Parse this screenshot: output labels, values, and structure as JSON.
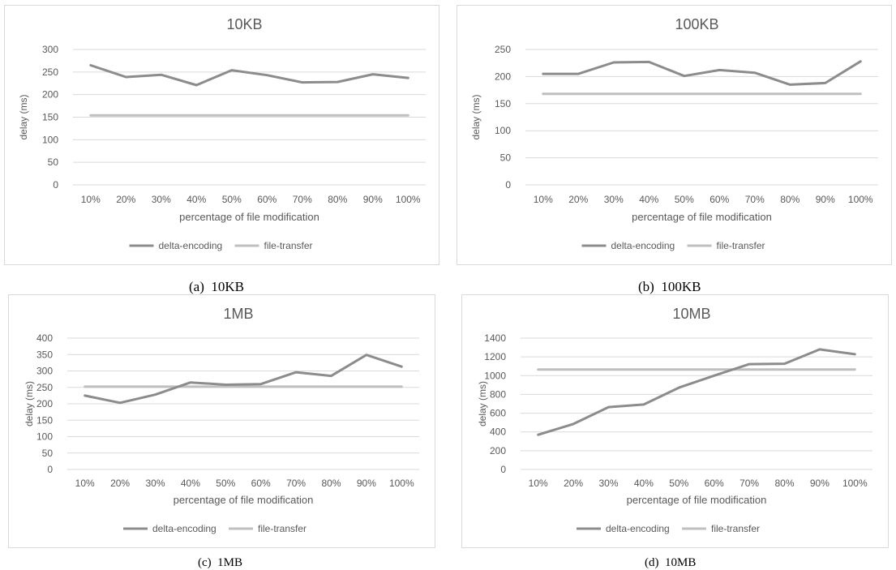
{
  "colors": {
    "delta_line": "#8c8c8c",
    "file_line": "#bfbfbf",
    "grid": "#d9d9d9",
    "text": "#595959",
    "border": "#d9d9d9"
  },
  "captions": [
    "(a)  10KB",
    "(b)  100KB",
    "(c)  1MB",
    "(d)  10MB"
  ],
  "chart_data": [
    {
      "type": "line",
      "title": "10KB",
      "xlabel": "percentage of file modification",
      "ylabel": "delay (ms)",
      "categories": [
        "10%",
        "20%",
        "30%",
        "40%",
        "50%",
        "60%",
        "70%",
        "80%",
        "90%",
        "100%"
      ],
      "ylim": [
        0,
        300
      ],
      "yticks": [
        0,
        50,
        100,
        150,
        200,
        250,
        300
      ],
      "grid": true,
      "legend": "bottom",
      "series": [
        {
          "name": "delta-encoding",
          "values": [
            265,
            239,
            244,
            221,
            254,
            243,
            227,
            228,
            245,
            237
          ]
        },
        {
          "name": "file-transfer",
          "values": [
            154,
            154,
            154,
            154,
            154,
            154,
            154,
            154,
            154,
            154
          ]
        }
      ]
    },
    {
      "type": "line",
      "title": "100KB",
      "xlabel": "percentage of file modification",
      "ylabel": "delay (ms)",
      "categories": [
        "10%",
        "20%",
        "30%",
        "40%",
        "50%",
        "60%",
        "70%",
        "80%",
        "90%",
        "100%"
      ],
      "ylim": [
        0,
        250
      ],
      "yticks": [
        0,
        50,
        100,
        150,
        200,
        250
      ],
      "grid": true,
      "legend": "bottom",
      "series": [
        {
          "name": "delta-encoding",
          "values": [
            205,
            205,
            226,
            227,
            201,
            212,
            207,
            185,
            188,
            228
          ]
        },
        {
          "name": "file-transfer",
          "values": [
            168,
            168,
            168,
            168,
            168,
            168,
            168,
            168,
            168,
            168
          ]
        }
      ]
    },
    {
      "type": "line",
      "title": "1MB",
      "xlabel": "percentage of file modification",
      "ylabel": "delay (ms)",
      "categories": [
        "10%",
        "20%",
        "30%",
        "40%",
        "50%",
        "60%",
        "70%",
        "80%",
        "90%",
        "100%"
      ],
      "ylim": [
        0,
        400
      ],
      "yticks": [
        0,
        50,
        100,
        150,
        200,
        250,
        300,
        350,
        400
      ],
      "grid": true,
      "legend": "bottom",
      "series": [
        {
          "name": "delta-encoding",
          "values": [
            225,
            203,
            228,
            265,
            258,
            260,
            296,
            285,
            349,
            313
          ]
        },
        {
          "name": "file-transfer",
          "values": [
            252,
            252,
            252,
            252,
            252,
            252,
            252,
            252,
            252,
            252
          ]
        }
      ]
    },
    {
      "type": "line",
      "title": "10MB",
      "xlabel": "percentage of file modification",
      "ylabel": "delay (ms)",
      "categories": [
        "10%",
        "20%",
        "30%",
        "40%",
        "50%",
        "60%",
        "70%",
        "80%",
        "90%",
        "100%"
      ],
      "ylim": [
        0,
        1400
      ],
      "yticks": [
        0,
        200,
        400,
        600,
        800,
        1000,
        1200,
        1400
      ],
      "grid": true,
      "legend": "bottom",
      "series": [
        {
          "name": "delta-encoding",
          "values": [
            370,
            485,
            665,
            692,
            872,
            1000,
            1123,
            1127,
            1280,
            1228
          ]
        },
        {
          "name": "file-transfer",
          "values": [
            1065,
            1065,
            1065,
            1065,
            1065,
            1065,
            1065,
            1065,
            1065,
            1065
          ]
        }
      ]
    }
  ]
}
